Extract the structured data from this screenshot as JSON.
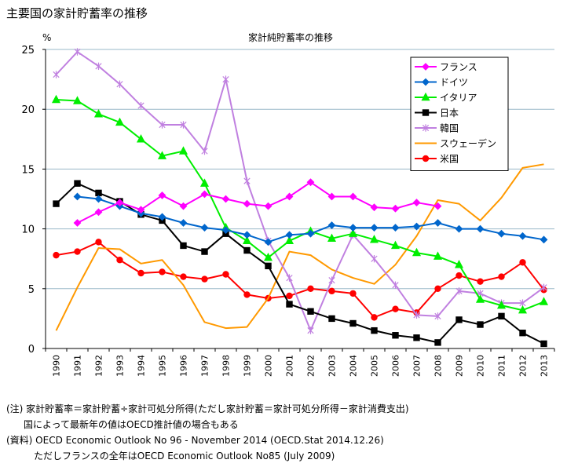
{
  "page": {
    "title": "主要国の家計貯蓄率の推移"
  },
  "notes": [
    "(注) 家計貯蓄率＝家計貯蓄÷家計可処分所得(ただし家計貯蓄＝家計可処分所得－家計消費支出)",
    "国によって最新年の値はOECD推計値の場合もある",
    "(資料) OECD Economic Outlook No 96 - November 2014 (OECD.Stat 2014.12.26)",
    "ただしフランスの全年はOECD Economic Outlook No85 (July 2009)"
  ],
  "chart_data": {
    "type": "line",
    "title": "家計純貯蓄率の推移",
    "ylabel": "%",
    "xlabel": "",
    "ylim": [
      0,
      25
    ],
    "yticks": [
      0,
      5,
      10,
      15,
      20,
      25
    ],
    "grid": "horizontal",
    "legend_position": "top-right",
    "x": [
      1990,
      1991,
      1992,
      1993,
      1994,
      1995,
      1996,
      1997,
      1998,
      1999,
      2000,
      2001,
      2002,
      2003,
      2004,
      2005,
      2006,
      2007,
      2008,
      2009,
      2010,
      2011,
      2012,
      2013
    ],
    "series": [
      {
        "name": "フランス",
        "color": "#ff00ff",
        "marker": "diamond",
        "values": [
          null,
          10.5,
          11.4,
          12.2,
          11.6,
          12.8,
          11.9,
          12.9,
          12.5,
          12.1,
          11.9,
          12.7,
          13.9,
          12.7,
          12.7,
          11.8,
          11.7,
          12.2,
          11.9,
          null,
          null,
          null,
          null,
          null
        ]
      },
      {
        "name": "ドイツ",
        "color": "#0066cc",
        "marker": "diamond",
        "values": [
          null,
          12.7,
          12.5,
          11.9,
          11.3,
          11.0,
          10.5,
          10.1,
          9.9,
          9.5,
          8.9,
          9.5,
          9.6,
          10.3,
          10.1,
          10.1,
          10.1,
          10.2,
          10.5,
          10.0,
          10.0,
          9.6,
          9.4,
          9.1
        ]
      },
      {
        "name": "イタリア",
        "color": "#00ee00",
        "marker": "triangle",
        "values": [
          20.8,
          20.7,
          19.6,
          18.9,
          17.5,
          16.1,
          16.5,
          13.8,
          10.1,
          9.0,
          7.6,
          9.0,
          9.8,
          9.2,
          9.6,
          9.1,
          8.6,
          8.0,
          7.7,
          7.0,
          4.1,
          3.6,
          3.2,
          3.9
        ]
      },
      {
        "name": "日本",
        "color": "#000000",
        "marker": "square",
        "values": [
          12.1,
          13.8,
          13.0,
          12.3,
          11.2,
          10.7,
          8.6,
          8.1,
          9.6,
          8.2,
          6.9,
          3.7,
          3.1,
          2.5,
          2.1,
          1.5,
          1.1,
          0.9,
          0.5,
          2.4,
          2.0,
          2.7,
          1.3,
          0.4
        ]
      },
      {
        "name": "韓国",
        "color": "#c080e0",
        "marker": "star",
        "values": [
          22.9,
          24.8,
          23.6,
          22.1,
          20.3,
          18.7,
          18.7,
          16.5,
          22.5,
          14.0,
          9.0,
          5.9,
          1.5,
          5.7,
          9.5,
          7.5,
          5.3,
          2.8,
          2.7,
          4.8,
          4.6,
          3.8,
          3.8,
          5.1
        ]
      },
      {
        "name": "スウェーデン",
        "color": "#ff9900",
        "marker": "none",
        "values": [
          1.5,
          5.1,
          8.4,
          8.3,
          7.1,
          7.4,
          5.3,
          2.2,
          1.7,
          1.8,
          4.2,
          8.1,
          7.8,
          6.6,
          5.9,
          5.4,
          7.0,
          9.4,
          12.4,
          12.1,
          10.7,
          12.6,
          15.1,
          15.4
        ]
      },
      {
        "name": "米国",
        "color": "#ff0000",
        "marker": "circle",
        "values": [
          7.8,
          8.1,
          8.9,
          7.4,
          6.3,
          6.4,
          6.0,
          5.8,
          6.2,
          4.5,
          4.2,
          4.4,
          5.0,
          4.8,
          4.6,
          2.6,
          3.3,
          3.0,
          5.0,
          6.1,
          5.6,
          6.0,
          7.2,
          4.9
        ]
      }
    ]
  }
}
